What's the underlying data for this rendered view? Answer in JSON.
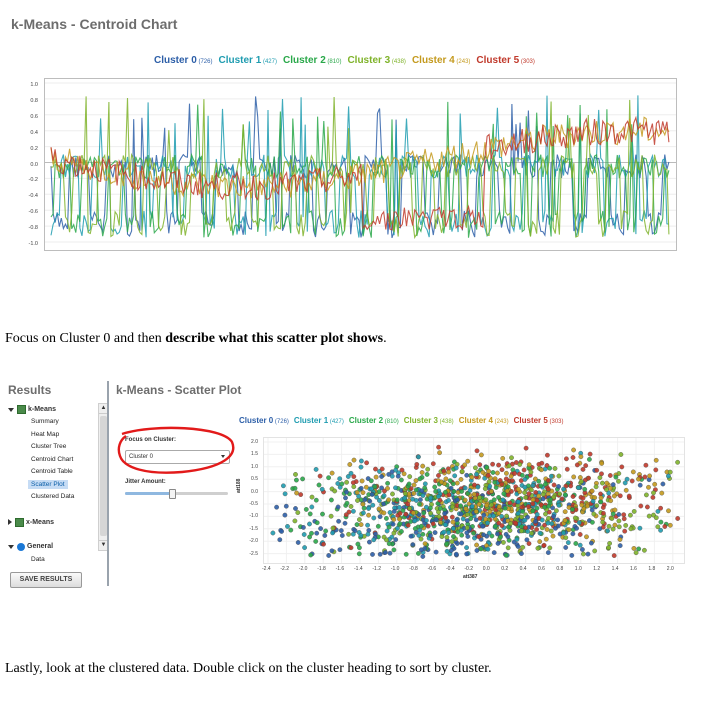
{
  "top_chart": {
    "title": "k-Means - Centroid Chart",
    "legend": [
      {
        "name": "Cluster 0",
        "count": "(726)",
        "color": "#2d5fa8"
      },
      {
        "name": "Cluster 1",
        "count": "(427)",
        "color": "#1f9cb0"
      },
      {
        "name": "Cluster 2",
        "count": "(810)",
        "color": "#2aa84a"
      },
      {
        "name": "Cluster 3",
        "count": "(438)",
        "color": "#7fb32a"
      },
      {
        "name": "Cluster 4",
        "count": "(243)",
        "color": "#c49a1e"
      },
      {
        "name": "Cluster 5",
        "count": "(303)",
        "color": "#c0392b"
      }
    ],
    "y_ticks": [
      "1.0",
      "0.8",
      "0.6",
      "0.4",
      "0.2",
      "0.0",
      "-0.2",
      "-0.4",
      "-0.6",
      "-0.8",
      "-1.0"
    ]
  },
  "instruction1_pre": "Focus on Cluster 0 and then ",
  "instruction1_bold": "describe what this scatter plot shows",
  "instruction1_post": ".",
  "results": {
    "title": "Results",
    "groups": [
      {
        "label": "k-Means",
        "icon": "kmeans-icon",
        "expanded": true,
        "items": [
          "Summary",
          "Heat Map",
          "Cluster Tree",
          "Centroid Chart",
          "Centroid Table",
          "Scatter Plot",
          "Clustered Data"
        ]
      },
      {
        "label": "x-Means",
        "icon": "xmeans-icon",
        "expanded": false,
        "items": []
      },
      {
        "label": "General",
        "icon": "info-icon",
        "expanded": true,
        "items": [
          "Data"
        ]
      }
    ],
    "selected_item": "Scatter Plot",
    "save_button": "SAVE RESULTS"
  },
  "scatter": {
    "title": "k-Means - Scatter Plot",
    "focus_label": "Focus on Cluster:",
    "focus_value": "Cluster 0",
    "jitter_label": "Jitter Amount:",
    "jitter_level": 0.5,
    "y_axis_label": "att188",
    "x_axis_label": "att387",
    "y_ticks": [
      "2.0",
      "1.5",
      "1.0",
      "0.5",
      "0.0",
      "-0.5",
      "-1.0",
      "-1.5",
      "-2.0",
      "-2.5"
    ],
    "x_ticks": [
      "-2.4",
      "-2.2",
      "-2.0",
      "-1.8",
      "-1.6",
      "-1.4",
      "-1.2",
      "-1.0",
      "-0.8",
      "-0.6",
      "-0.4",
      "-0.2",
      "0.0",
      "0.2",
      "0.4",
      "0.6",
      "0.8",
      "1.0",
      "1.2",
      "1.4",
      "1.6",
      "1.8",
      "2.0"
    ]
  },
  "instruction2": "Lastly, look at the clustered data.  Double click on the cluster heading to sort by cluster."
}
